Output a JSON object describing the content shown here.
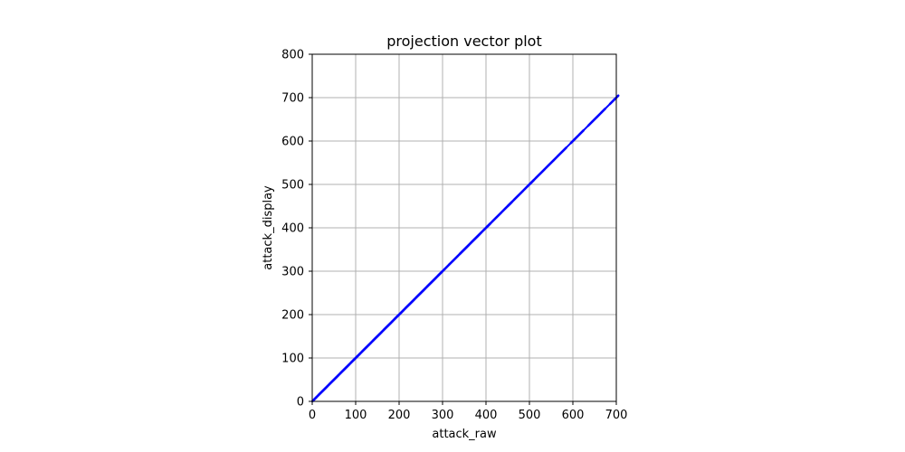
{
  "chart_data": {
    "type": "line",
    "title": "projection vector plot",
    "xlabel": "attack_raw",
    "ylabel": "attack_display",
    "xlim": [
      0,
      700
    ],
    "ylim": [
      0,
      800
    ],
    "xticks": [
      0,
      100,
      200,
      300,
      400,
      500,
      600,
      700
    ],
    "yticks": [
      0,
      100,
      200,
      300,
      400,
      500,
      600,
      700,
      800
    ],
    "grid": true,
    "series": [
      {
        "color": "#0000ff",
        "x": [
          0,
          700
        ],
        "y": [
          0,
          700
        ]
      }
    ],
    "markers": {
      "color": "#0000ff",
      "x": [
        5,
        10,
        15,
        20,
        25,
        30,
        35,
        40,
        45,
        50,
        55,
        60,
        65,
        70,
        75,
        80,
        85,
        90,
        95,
        100,
        105,
        110,
        115,
        120,
        125,
        130,
        135,
        140,
        145,
        150,
        155,
        160,
        165,
        170,
        175,
        180,
        185,
        190,
        195,
        200,
        205,
        210,
        215,
        220,
        225,
        230,
        235,
        240,
        245,
        250,
        255,
        260,
        265,
        270,
        275,
        280,
        285,
        290,
        295,
        300,
        310,
        320,
        330,
        340,
        345,
        350,
        355,
        360,
        365,
        370,
        375,
        380,
        385,
        390,
        400,
        405,
        410,
        420,
        430,
        440,
        450,
        455,
        460,
        470,
        480,
        490,
        500,
        505,
        510,
        520,
        530,
        540,
        550,
        560,
        570,
        580,
        600,
        610,
        620,
        640,
        650,
        660,
        670,
        690,
        700
      ],
      "y": [
        5,
        10,
        15,
        20,
        25,
        30,
        35,
        40,
        45,
        50,
        55,
        60,
        65,
        70,
        75,
        80,
        85,
        90,
        95,
        100,
        105,
        110,
        115,
        120,
        125,
        130,
        135,
        140,
        145,
        150,
        155,
        160,
        165,
        170,
        175,
        180,
        185,
        190,
        195,
        200,
        205,
        210,
        215,
        220,
        225,
        230,
        235,
        240,
        245,
        250,
        255,
        260,
        265,
        270,
        275,
        280,
        285,
        290,
        295,
        300,
        310,
        320,
        330,
        340,
        345,
        350,
        355,
        360,
        365,
        370,
        375,
        380,
        385,
        390,
        400,
        405,
        410,
        420,
        430,
        440,
        450,
        455,
        460,
        470,
        480,
        490,
        500,
        505,
        510,
        520,
        530,
        540,
        550,
        560,
        570,
        580,
        600,
        610,
        620,
        640,
        650,
        660,
        670,
        690,
        700
      ]
    }
  }
}
